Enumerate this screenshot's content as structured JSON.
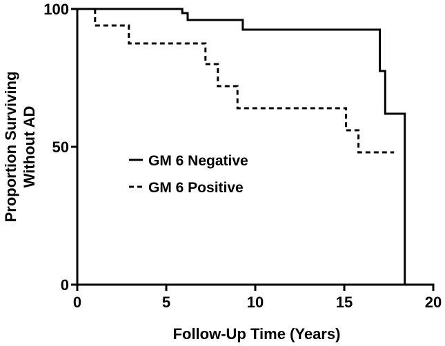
{
  "chart_data": {
    "type": "line",
    "subtype": "kaplan-meier-step",
    "title": "",
    "xlabel": "Follow-Up Time (Years)",
    "ylabel_line1": "Proportion Surviving",
    "ylabel_line2": "Without AD",
    "xlim": [
      0,
      20
    ],
    "ylim": [
      0,
      100
    ],
    "xticks": [
      0,
      5,
      10,
      15,
      20
    ],
    "yticks": [
      0,
      50,
      100
    ],
    "xtick_labels": [
      "0",
      "5",
      "10",
      "15",
      "20"
    ],
    "ytick_labels": [
      "0",
      "50",
      "100"
    ],
    "legend_position": "center-left",
    "series": [
      {
        "name": "GM 6 Negative",
        "style": "solid",
        "x": [
          0,
          5.9,
          5.9,
          6.2,
          6.2,
          9.3,
          9.3,
          17.0,
          17.0,
          17.3,
          17.3,
          18.4,
          18.4
        ],
        "y": [
          100,
          100,
          98.5,
          98.5,
          96,
          96,
          92.5,
          92.5,
          77.5,
          77.5,
          62,
          62,
          0
        ]
      },
      {
        "name": "GM 6 Positive",
        "style": "dashed",
        "x": [
          1.0,
          1.0,
          2.9,
          2.9,
          7.2,
          7.2,
          7.9,
          7.9,
          9.0,
          9.0,
          15.1,
          15.1,
          15.8,
          15.8,
          17.8
        ],
        "y": [
          100,
          94,
          94,
          87.5,
          87.5,
          80,
          80,
          72,
          72,
          64,
          64,
          56,
          56,
          48,
          48
        ]
      }
    ]
  }
}
